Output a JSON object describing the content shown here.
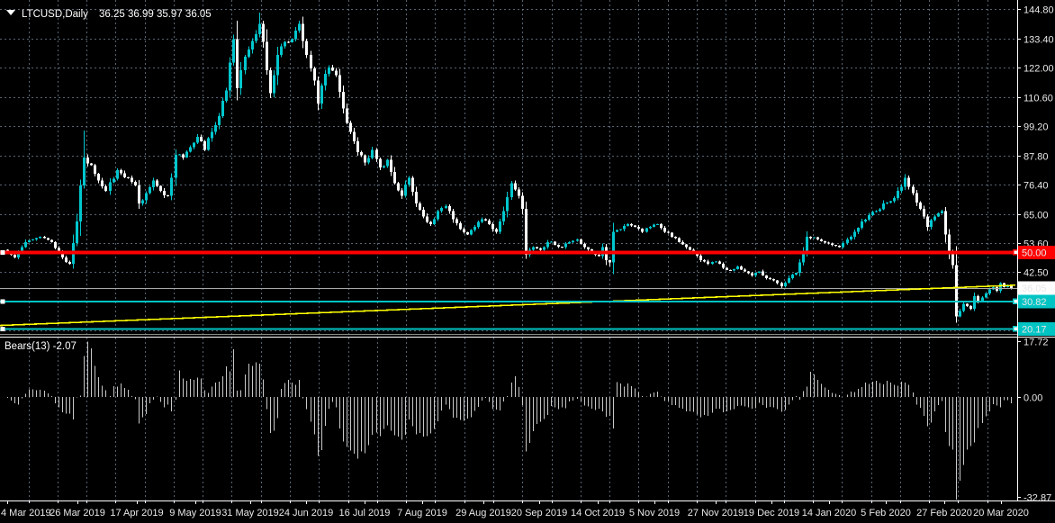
{
  "header": {
    "collapse_icon": "▼",
    "symbol": "LTCUSD,Daily",
    "ohlc": "36.25 36.99 35.97 36.05"
  },
  "indicator_panel": {
    "label": "Bears(13) -2.07"
  },
  "colors": {
    "background": "#000000",
    "grid": "#66778A",
    "bull": "#00C7CE",
    "bear": "#FFFFFF",
    "histogram": "#C8C8C8",
    "red_line": "#FF0000",
    "yellow_line": "#FFFF00",
    "cyan_line": "#00C4C4",
    "price_line": "#A8A8A8",
    "axis": "#FFFFFF",
    "label_text": "#E8E8E8",
    "separator_dark": "#8A8A8A",
    "separator_light": "#FFFFFF"
  },
  "chart_data": {
    "type": "candlestick",
    "symbol": "LTCUSD",
    "timeframe": "Daily",
    "last_ohlc": {
      "open": 36.25,
      "high": 36.99,
      "low": 35.97,
      "close": 36.05
    },
    "price_axis_labels": [
      144.8,
      133.4,
      122.0,
      110.6,
      99.2,
      87.8,
      76.4,
      65.0,
      53.6,
      42.5
    ],
    "grid_price_step": 11.4,
    "time_axis_labels": [
      "4 Mar 2019",
      "26 Mar 2019",
      "17 Apr 2019",
      "9 May 2019",
      "31 May 2019",
      "24 Jun 2019",
      "16 Jul 2019",
      "7 Aug 2019",
      "29 Aug 2019",
      "20 Sep 2019",
      "14 Oct 2019",
      "5 Nov 2019",
      "27 Nov 2019",
      "19 Dec 2019",
      "14 Jan 2020",
      "5 Feb 2020",
      "27 Feb 2020",
      "20 Mar 2020"
    ],
    "bars": 276,
    "seed": 11,
    "close_anchors": [
      [
        0,
        50
      ],
      [
        2,
        48
      ],
      [
        5,
        54
      ],
      [
        9,
        56
      ],
      [
        12,
        54
      ],
      [
        15,
        48
      ],
      [
        17,
        45.5
      ],
      [
        19,
        62
      ],
      [
        20,
        76
      ],
      [
        21,
        87
      ],
      [
        23,
        84
      ],
      [
        25,
        78
      ],
      [
        27,
        74
      ],
      [
        30,
        82
      ],
      [
        33,
        79
      ],
      [
        35,
        76
      ],
      [
        36,
        69
      ],
      [
        38,
        73
      ],
      [
        40,
        78
      ],
      [
        42,
        74
      ],
      [
        44,
        72
      ],
      [
        45,
        79
      ],
      [
        46,
        88
      ],
      [
        48,
        87
      ],
      [
        50,
        91
      ],
      [
        52,
        95
      ],
      [
        54,
        90
      ],
      [
        56,
        97
      ],
      [
        58,
        103
      ],
      [
        60,
        113
      ],
      [
        61,
        124
      ],
      [
        62,
        133
      ],
      [
        63,
        114
      ],
      [
        64,
        121
      ],
      [
        66,
        129
      ],
      [
        68,
        135
      ],
      [
        69,
        139
      ],
      [
        70,
        132
      ],
      [
        71,
        121
      ],
      [
        72,
        112
      ],
      [
        73,
        119
      ],
      [
        74,
        127
      ],
      [
        76,
        132
      ],
      [
        78,
        133
      ],
      [
        80,
        139
      ],
      [
        82,
        127
      ],
      [
        84,
        117
      ],
      [
        85,
        108
      ],
      [
        86,
        115
      ],
      [
        88,
        122
      ],
      [
        90,
        119
      ],
      [
        92,
        106
      ],
      [
        94,
        97
      ],
      [
        96,
        89
      ],
      [
        98,
        85
      ],
      [
        100,
        90
      ],
      [
        102,
        83
      ],
      [
        104,
        86
      ],
      [
        106,
        77
      ],
      [
        108,
        72
      ],
      [
        110,
        79
      ],
      [
        112,
        69
      ],
      [
        114,
        64
      ],
      [
        116,
        61
      ],
      [
        118,
        66
      ],
      [
        120,
        68
      ],
      [
        122,
        63
      ],
      [
        124,
        59
      ],
      [
        126,
        57
      ],
      [
        128,
        60
      ],
      [
        130,
        63
      ],
      [
        132,
        61
      ],
      [
        134,
        58
      ],
      [
        136,
        66
      ],
      [
        138,
        77
      ],
      [
        140,
        72
      ],
      [
        141,
        67
      ],
      [
        142,
        49
      ],
      [
        144,
        52
      ],
      [
        146,
        51
      ],
      [
        148,
        54
      ],
      [
        150,
        53
      ],
      [
        152,
        52
      ],
      [
        154,
        54
      ],
      [
        156,
        55
      ],
      [
        158,
        52
      ],
      [
        160,
        50
      ],
      [
        162,
        48.5
      ],
      [
        163,
        52
      ],
      [
        164,
        47
      ],
      [
        165,
        46
      ],
      [
        166,
        58
      ],
      [
        168,
        59
      ],
      [
        170,
        61
      ],
      [
        172,
        60
      ],
      [
        174,
        58
      ],
      [
        176,
        60
      ],
      [
        178,
        61
      ],
      [
        180,
        58
      ],
      [
        182,
        56
      ],
      [
        184,
        54
      ],
      [
        186,
        52
      ],
      [
        188,
        50
      ],
      [
        190,
        47
      ],
      [
        192,
        45.5
      ],
      [
        194,
        46.5
      ],
      [
        196,
        44
      ],
      [
        198,
        43
      ],
      [
        200,
        44.5
      ],
      [
        202,
        42.5
      ],
      [
        204,
        41
      ],
      [
        206,
        42.5
      ],
      [
        208,
        40
      ],
      [
        210,
        39
      ],
      [
        212,
        36.8
      ],
      [
        214,
        40
      ],
      [
        216,
        42
      ],
      [
        217,
        46
      ],
      [
        219,
        56
      ],
      [
        222,
        55
      ],
      [
        225,
        53.5
      ],
      [
        228,
        52
      ],
      [
        230,
        55
      ],
      [
        232,
        58
      ],
      [
        234,
        62
      ],
      [
        236,
        64.5
      ],
      [
        238,
        66
      ],
      [
        240,
        69
      ],
      [
        242,
        70
      ],
      [
        244,
        74
      ],
      [
        246,
        79
      ],
      [
        248,
        73
      ],
      [
        250,
        67
      ],
      [
        252,
        60
      ],
      [
        254,
        64
      ],
      [
        256,
        66
      ],
      [
        257,
        57
      ],
      [
        258,
        50
      ],
      [
        259,
        45
      ],
      [
        260,
        25
      ],
      [
        262,
        30
      ],
      [
        264,
        28
      ],
      [
        265,
        33
      ],
      [
        266,
        31
      ],
      [
        268,
        34
      ],
      [
        270,
        36.5
      ],
      [
        271,
        35
      ],
      [
        272,
        38
      ],
      [
        273,
        36.5
      ],
      [
        274,
        37.2
      ],
      [
        275,
        36.05
      ]
    ],
    "wick_high_overrides": {
      "21": 97.5,
      "69": 143.4,
      "246": 80.5
    },
    "wick_low_overrides": {
      "165": 44.5,
      "212": 36.0,
      "260": 22.5
    },
    "overlays": {
      "horizontal_lines": [
        {
          "price": 50.0,
          "label": "50.00",
          "color": "#FF0000",
          "width": 4,
          "label_bg": "#FF0000",
          "label_fg": "#FFFFFF"
        },
        {
          "price": 30.82,
          "label": "30.82",
          "color": "#00C4C4",
          "width": 1.8,
          "label_bg": "#00C4C4",
          "label_fg": "#000000"
        },
        {
          "price": 20.17,
          "label": "20.17",
          "color": "#00C4C4",
          "width": 1.8,
          "label_bg": "#00C4C4",
          "label_fg": "#000000"
        }
      ],
      "current_price": {
        "value": 36.05,
        "label": "36.05",
        "color": "#A8A8A8",
        "label_bg": "#FFFFFF",
        "label_fg": "#000000"
      },
      "trendline": {
        "color": "#FFFF00",
        "price_start": 21.5,
        "price_end": 37.2
      }
    },
    "indicator": {
      "type": "histogram",
      "name": "Bears",
      "period": 13,
      "last_value": -2.07,
      "axis_values": [
        17.72,
        0.0,
        -32.87
      ],
      "max": 17.72,
      "min": -32.87,
      "formula": "low - ema13(close)"
    }
  }
}
